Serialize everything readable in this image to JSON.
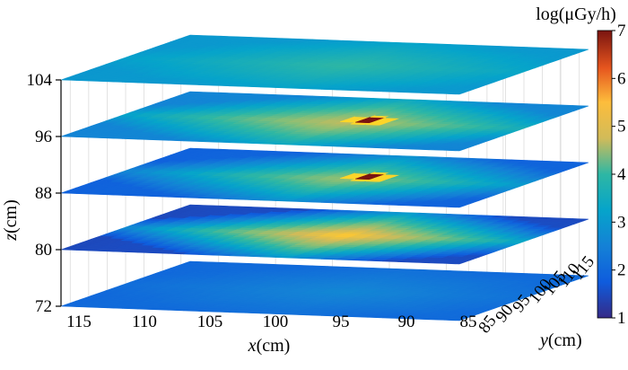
{
  "chart_data": {
    "type": "heatmap",
    "title": "",
    "colorbar": {
      "label": "log(μGy/h)",
      "min": 1,
      "max": 7,
      "ticks": [
        "1",
        "2",
        "3",
        "4",
        "5",
        "6",
        "7"
      ],
      "colors": [
        "#352a87",
        "#0f5cdd",
        "#1481d6",
        "#06a4ca",
        "#2eb7a4",
        "#87bf77",
        "#d1bb59",
        "#fec832",
        "#f9fb0e"
      ],
      "top_color": "#7a1410"
    },
    "x_axis": {
      "var": "x",
      "unit": "(cm)",
      "ticks": [
        "115",
        "110",
        "105",
        "100",
        "95",
        "90",
        "85"
      ],
      "range": [
        82,
        117
      ]
    },
    "y_axis": {
      "var": "y",
      "unit": "(cm)",
      "ticks": [
        "85",
        "90",
        "95",
        "100",
        "105",
        "110",
        "115"
      ],
      "range": [
        82,
        117
      ]
    },
    "z_axis": {
      "var": "z",
      "unit": "(cm)",
      "ticks": [
        "72",
        "80",
        "88",
        "96",
        "104"
      ]
    },
    "slices": [
      {
        "z": 72,
        "base": 1.9,
        "peak": 2.2,
        "hotspot": false
      },
      {
        "z": 80,
        "base": 1.5,
        "peak": 4.9,
        "hotspot": false
      },
      {
        "z": 88,
        "base": 1.8,
        "peak": 3.9,
        "hotspot": true
      },
      {
        "z": 96,
        "base": 2.3,
        "peak": 4.2,
        "hotspot": true
      },
      {
        "z": 104,
        "base": 2.6,
        "peak": 3.2,
        "hotspot": false
      }
    ]
  }
}
